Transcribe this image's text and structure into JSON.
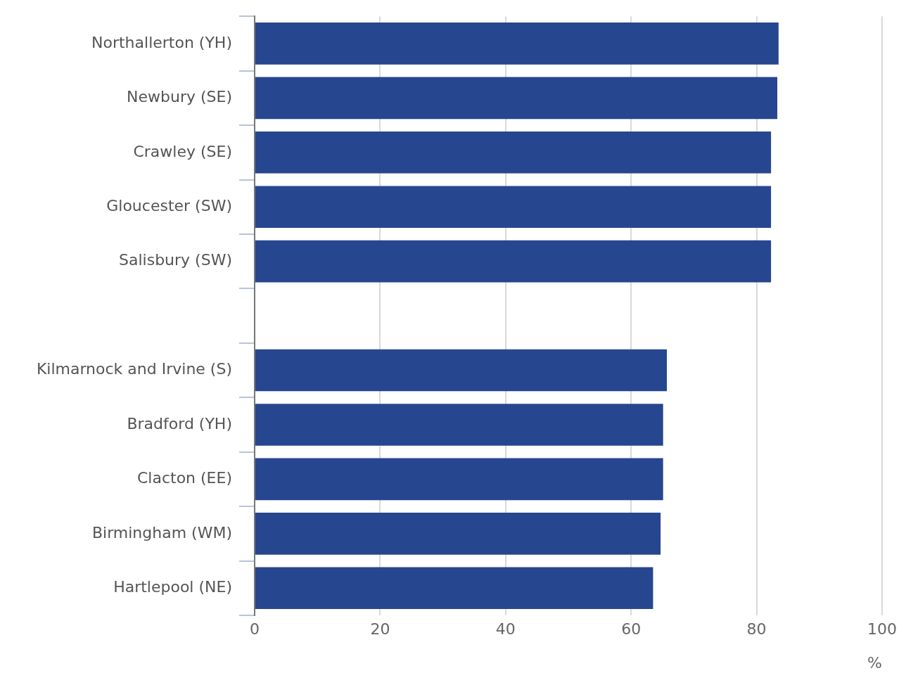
{
  "chart_data": {
    "type": "bar",
    "orientation": "horizontal",
    "categories": [
      "Northallerton (YH)",
      "Newbury (SE)",
      "Crawley (SE)",
      "Gloucester (SW)",
      "Salisbury (SW)",
      null,
      "Kilmarnock and Irvine (S)",
      "Bradford (YH)",
      "Clacton (EE)",
      "Birmingham (WM)",
      "Hartlepool (NE)"
    ],
    "values": [
      83.5,
      83.3,
      82.3,
      82.3,
      82.3,
      null,
      65.7,
      65.1,
      65.1,
      64.7,
      63.5
    ],
    "color": "#26468f",
    "xlim": [
      0,
      100
    ],
    "xticks": [
      0,
      20,
      40,
      60,
      80,
      100
    ],
    "xlabel": "%",
    "grid": "x"
  }
}
